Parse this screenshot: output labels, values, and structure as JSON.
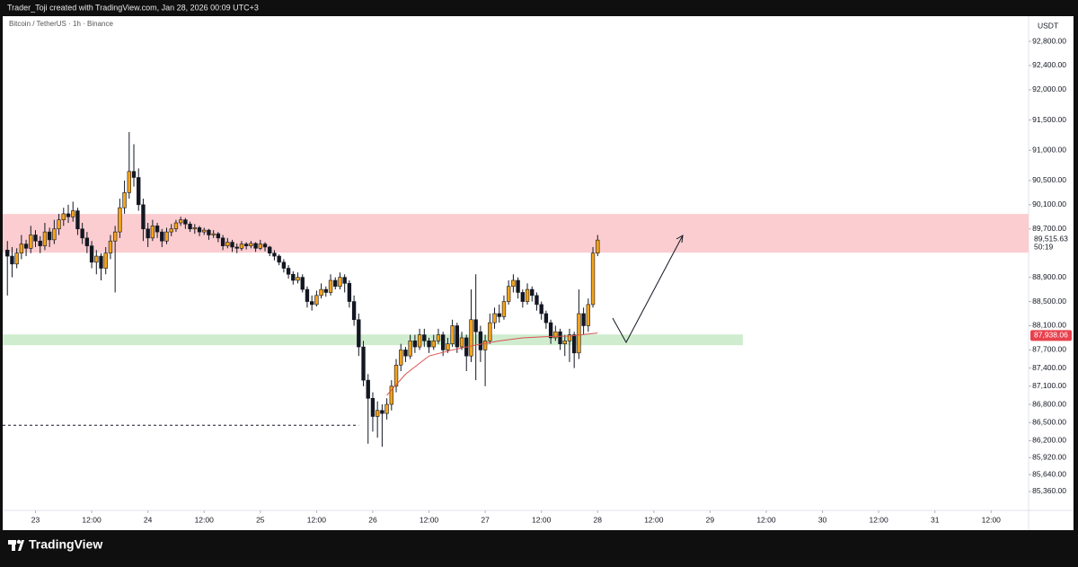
{
  "header": {
    "caption": "Trader_Toji created with TradingView.com, Jan 28, 2026 00:09 UTC+3",
    "brand": "TradingView"
  },
  "chart_data": {
    "type": "candlestick",
    "title": "Bitcoin / TetherUS · 1h · Binance",
    "y_unit": "USDT",
    "up_color": "#f5a31a",
    "down_color": "#131722",
    "candles": [
      [
        89350,
        89500,
        88600,
        89250
      ],
      [
        89250,
        89400,
        88900,
        89120
      ],
      [
        89120,
        89380,
        89050,
        89300
      ],
      [
        89300,
        89600,
        89200,
        89450
      ],
      [
        89450,
        89520,
        89250,
        89380
      ],
      [
        89380,
        89750,
        89300,
        89600
      ],
      [
        89600,
        89680,
        89400,
        89500
      ],
      [
        89500,
        89580,
        89300,
        89420
      ],
      [
        89420,
        89800,
        89350,
        89650
      ],
      [
        89650,
        89720,
        89400,
        89520
      ],
      [
        89520,
        89850,
        89450,
        89700
      ],
      [
        89700,
        89950,
        89600,
        89850
      ],
      [
        89850,
        90050,
        89750,
        89950
      ],
      [
        89950,
        90100,
        89800,
        89900
      ],
      [
        89900,
        90150,
        89820,
        90000
      ],
      [
        90000,
        90050,
        89600,
        89700
      ],
      [
        89700,
        89800,
        89450,
        89550
      ],
      [
        89550,
        89650,
        89300,
        89420
      ],
      [
        89420,
        89500,
        89050,
        89150
      ],
      [
        89150,
        89350,
        88950,
        89250
      ],
      [
        89250,
        89300,
        88850,
        89050
      ],
      [
        89050,
        89400,
        88950,
        89300
      ],
      [
        89300,
        89600,
        89200,
        89500
      ],
      [
        89500,
        89750,
        88650,
        89650
      ],
      [
        89650,
        90200,
        89550,
        90050
      ],
      [
        90050,
        90500,
        89950,
        90300
      ],
      [
        90300,
        91300,
        90200,
        90650
      ],
      [
        90650,
        91100,
        90400,
        90550
      ],
      [
        90550,
        90700,
        90000,
        90100
      ],
      [
        90100,
        90200,
        89500,
        89700
      ],
      [
        89700,
        89800,
        89400,
        89550
      ],
      [
        89550,
        89850,
        89500,
        89750
      ],
      [
        89750,
        89800,
        89550,
        89650
      ],
      [
        89650,
        89700,
        89400,
        89500
      ],
      [
        89500,
        89720,
        89450,
        89650
      ],
      [
        89650,
        89780,
        89580,
        89700
      ],
      [
        89700,
        89850,
        89650,
        89800
      ],
      [
        89800,
        89900,
        89750,
        89850
      ],
      [
        89850,
        89880,
        89700,
        89780
      ],
      [
        89780,
        89820,
        89650,
        89700
      ],
      [
        89700,
        89780,
        89620,
        89720
      ],
      [
        89720,
        89750,
        89580,
        89650
      ],
      [
        89650,
        89720,
        89600,
        89680
      ],
      [
        89680,
        89700,
        89520,
        89600
      ],
      [
        89600,
        89680,
        89550,
        89620
      ],
      [
        89620,
        89650,
        89480,
        89550
      ],
      [
        89550,
        89600,
        89350,
        89420
      ],
      [
        89420,
        89550,
        89380,
        89480
      ],
      [
        89480,
        89520,
        89320,
        89400
      ],
      [
        89400,
        89460,
        89300,
        89380
      ],
      [
        89380,
        89500,
        89340,
        89450
      ],
      [
        89450,
        89480,
        89360,
        89420
      ],
      [
        89420,
        89500,
        89380,
        89460
      ],
      [
        89460,
        89480,
        89320,
        89380
      ],
      [
        89380,
        89520,
        89350,
        89450
      ],
      [
        89450,
        89480,
        89330,
        89400
      ],
      [
        89400,
        89420,
        89250,
        89300
      ],
      [
        89300,
        89350,
        89180,
        89250
      ],
      [
        89250,
        89280,
        89100,
        89150
      ],
      [
        89150,
        89200,
        88980,
        89050
      ],
      [
        89050,
        89100,
        88880,
        88950
      ],
      [
        88950,
        89000,
        88780,
        88850
      ],
      [
        88850,
        88980,
        88800,
        88900
      ],
      [
        88900,
        88950,
        88650,
        88700
      ],
      [
        88700,
        88750,
        88400,
        88500
      ],
      [
        88500,
        88600,
        88350,
        88450
      ],
      [
        88450,
        88680,
        88420,
        88600
      ],
      [
        88600,
        88800,
        88550,
        88700
      ],
      [
        88700,
        88750,
        88580,
        88650
      ],
      [
        88650,
        88950,
        88600,
        88850
      ],
      [
        88850,
        88900,
        88700,
        88750
      ],
      [
        88750,
        88980,
        88700,
        88900
      ],
      [
        88900,
        88950,
        88650,
        88800
      ],
      [
        88800,
        88850,
        88400,
        88500
      ],
      [
        88500,
        88600,
        88100,
        88200
      ],
      [
        88200,
        88300,
        87600,
        87750
      ],
      [
        87750,
        87850,
        87100,
        87200
      ],
      [
        87200,
        87300,
        86150,
        86900
      ],
      [
        86900,
        87000,
        86350,
        86600
      ],
      [
        86600,
        86850,
        86250,
        86700
      ],
      [
        86700,
        86800,
        86100,
        86650
      ],
      [
        86650,
        86900,
        86550,
        86800
      ],
      [
        86800,
        87200,
        86700,
        87100
      ],
      [
        87100,
        87550,
        87000,
        87450
      ],
      [
        87450,
        87800,
        87350,
        87700
      ],
      [
        87700,
        87750,
        87500,
        87600
      ],
      [
        87600,
        87950,
        87550,
        87850
      ],
      [
        87850,
        87950,
        87650,
        87750
      ],
      [
        87750,
        88050,
        87700,
        87950
      ],
      [
        87950,
        88050,
        87750,
        87850
      ],
      [
        87850,
        87900,
        87650,
        87750
      ],
      [
        87750,
        87950,
        87700,
        87850
      ],
      [
        87850,
        88050,
        87800,
        87950
      ],
      [
        87950,
        88000,
        87600,
        87700
      ],
      [
        87700,
        87900,
        87650,
        87800
      ],
      [
        87800,
        88200,
        87750,
        88100
      ],
      [
        88100,
        88150,
        87650,
        87750
      ],
      [
        87750,
        88000,
        87700,
        87900
      ],
      [
        87900,
        87950,
        87350,
        87600
      ],
      [
        87600,
        88700,
        87500,
        88200
      ],
      [
        88200,
        88950,
        87200,
        88000
      ],
      [
        88000,
        88100,
        87500,
        87700
      ],
      [
        87700,
        87950,
        87100,
        87850
      ],
      [
        87850,
        88300,
        87800,
        88150
      ],
      [
        88150,
        88400,
        88050,
        88300
      ],
      [
        88300,
        88450,
        88150,
        88250
      ],
      [
        88250,
        88600,
        88200,
        88500
      ],
      [
        88500,
        88850,
        88450,
        88750
      ],
      [
        88750,
        88950,
        88650,
        88850
      ],
      [
        88850,
        88900,
        88550,
        88650
      ],
      [
        88650,
        88700,
        88400,
        88500
      ],
      [
        88500,
        88800,
        88450,
        88700
      ],
      [
        88700,
        88750,
        88500,
        88600
      ],
      [
        88600,
        88650,
        88350,
        88450
      ],
      [
        88450,
        88500,
        88200,
        88300
      ],
      [
        88300,
        88350,
        88050,
        88150
      ],
      [
        88150,
        88200,
        87800,
        87900
      ],
      [
        87900,
        88100,
        87850,
        88000
      ],
      [
        88000,
        88050,
        87700,
        87800
      ],
      [
        87800,
        87950,
        87600,
        87850
      ],
      [
        87850,
        88050,
        87500,
        87950
      ],
      [
        87950,
        88000,
        87400,
        87650
      ],
      [
        87650,
        88700,
        87550,
        88300
      ],
      [
        88300,
        88400,
        87950,
        88100
      ],
      [
        88100,
        88550,
        88000,
        88450
      ],
      [
        88450,
        89400,
        88400,
        89300
      ],
      [
        89300,
        89600,
        89250,
        89515.63
      ]
    ],
    "indicator": {
      "color": "#d9534f",
      "x": [
        81,
        85,
        90,
        95,
        100,
        105,
        110,
        115,
        120,
        126
      ],
      "values": [
        86950,
        87300,
        87600,
        87700,
        87780,
        87850,
        87900,
        87920,
        87930,
        87980
      ]
    },
    "zones": [
      {
        "low": 89308,
        "high": 89947,
        "x_end": 218,
        "color": "#fbcdd0"
      },
      {
        "low": 87778,
        "high": 87956,
        "x_end": 157,
        "color": "#cfeccf"
      }
    ],
    "dashed_line": {
      "value": 86455,
      "x_end": 75
    },
    "last_price": {
      "value": 89515.63,
      "label": "89,515.63"
    },
    "countdown": "50:19",
    "marker_price": {
      "value": 87938.06,
      "label": "87,938.06",
      "color": "#e8414d"
    },
    "xlim": [
      -1,
      218
    ],
    "ylim": [
      85048,
      93216
    ],
    "xticks": [
      {
        "value": 6,
        "label": "23"
      },
      {
        "value": 18,
        "label": "12:00"
      },
      {
        "value": 30,
        "label": "24"
      },
      {
        "value": 42,
        "label": "12:00"
      },
      {
        "value": 54,
        "label": "25"
      },
      {
        "value": 66,
        "label": "12:00"
      },
      {
        "value": 78,
        "label": "26"
      },
      {
        "value": 90,
        "label": "12:00"
      },
      {
        "value": 102,
        "label": "27"
      },
      {
        "value": 114,
        "label": "12:00"
      },
      {
        "value": 126,
        "label": "28"
      },
      {
        "value": 138,
        "label": "12:00"
      },
      {
        "value": 150,
        "label": "29"
      },
      {
        "value": 162,
        "label": "12:00"
      },
      {
        "value": 174,
        "label": "30"
      },
      {
        "value": 186,
        "label": "12:00"
      },
      {
        "value": 198,
        "label": "31"
      },
      {
        "value": 210,
        "label": "12:00"
      }
    ],
    "yticks": [
      {
        "value": 92800,
        "label": "92,800.00"
      },
      {
        "value": 92400,
        "label": "92,400.00"
      },
      {
        "value": 92000,
        "label": "92,000.00"
      },
      {
        "value": 91500,
        "label": "91,500.00"
      },
      {
        "value": 91000,
        "label": "91,000.00"
      },
      {
        "value": 90500,
        "label": "90,500.00"
      },
      {
        "value": 90100,
        "label": "90,100.00"
      },
      {
        "value": 89700,
        "label": "89,700.00"
      },
      {
        "value": 88900,
        "label": "88,900.00"
      },
      {
        "value": 88500,
        "label": "88,500.00"
      },
      {
        "value": 88100,
        "label": "88,100.00"
      },
      {
        "value": 87700,
        "label": "87,700.00"
      },
      {
        "value": 87400,
        "label": "87,400.00"
      },
      {
        "value": 87100,
        "label": "87,100.00"
      },
      {
        "value": 86800,
        "label": "86,800.00"
      },
      {
        "value": 86500,
        "label": "86,500.00"
      },
      {
        "value": 86200,
        "label": "86,200.00"
      },
      {
        "value": 85920,
        "label": "85,920.00"
      },
      {
        "value": 85640,
        "label": "85,640.00"
      },
      {
        "value": 85360,
        "label": "85,360.00"
      }
    ]
  }
}
